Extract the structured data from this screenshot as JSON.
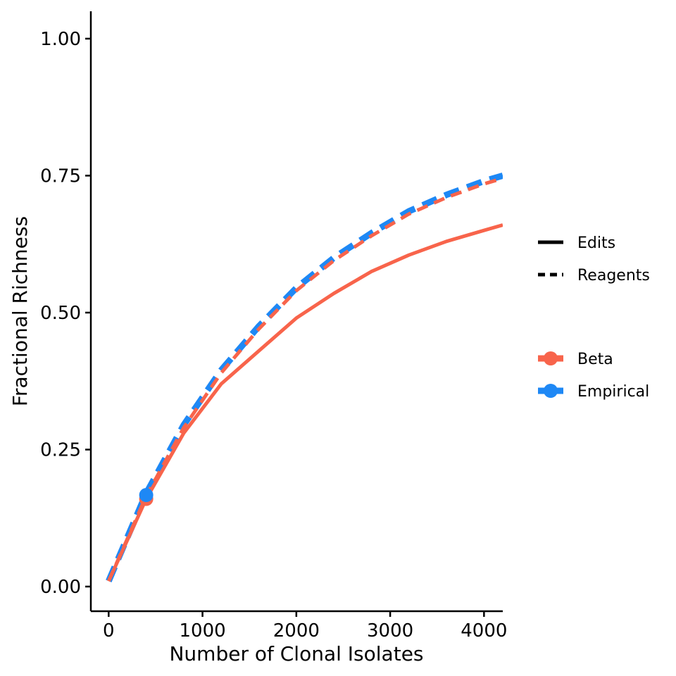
{
  "chart_data": {
    "type": "line",
    "xlabel": "Number of Clonal Isolates",
    "ylabel": "Fractional Richness",
    "xlim": [
      -190,
      4200
    ],
    "ylim": [
      -0.045,
      1.05
    ],
    "x_ticks": [
      0,
      1000,
      2000,
      3000,
      4000
    ],
    "x_tick_labels": [
      "0",
      "1000",
      "2000",
      "3000",
      "4000"
    ],
    "y_ticks": [
      0,
      0.25,
      0.5,
      0.75,
      1.0
    ],
    "y_tick_labels": [
      "0.00",
      "0.25",
      "0.50",
      "0.75",
      "1.00"
    ],
    "grid": false,
    "legend_position": "right",
    "linetype_legend": [
      {
        "label": "Edits",
        "style": "solid"
      },
      {
        "label": "Reagents",
        "style": "dashed"
      }
    ],
    "color_legend": [
      {
        "label": "Beta",
        "color": "#F8644B"
      },
      {
        "label": "Empirical",
        "color": "#1E88F5"
      }
    ],
    "series": [
      {
        "method": "Empirical",
        "type": "Reagents",
        "style": "dashed",
        "color": "#1E88F5",
        "x": [
          0,
          400,
          800,
          1200,
          1600,
          2000,
          2400,
          2800,
          3200,
          3600,
          4000,
          4200
        ],
        "y": [
          0.01,
          0.17,
          0.295,
          0.395,
          0.475,
          0.545,
          0.6,
          0.645,
          0.685,
          0.715,
          0.74,
          0.75
        ]
      },
      {
        "method": "Beta",
        "type": "Reagents",
        "style": "dashed",
        "color": "#F8644B",
        "x": [
          0,
          400,
          800,
          1200,
          1600,
          2000,
          2400,
          2800,
          3200,
          3600,
          4000,
          4200
        ],
        "y": [
          0.01,
          0.165,
          0.29,
          0.39,
          0.47,
          0.54,
          0.595,
          0.64,
          0.68,
          0.71,
          0.735,
          0.745
        ]
      },
      {
        "method": "Beta",
        "type": "Edits",
        "style": "solid",
        "color": "#F8644B",
        "x": [
          0,
          400,
          800,
          1200,
          1600,
          2000,
          2400,
          2800,
          3200,
          3600,
          4000,
          4200
        ],
        "y": [
          0.01,
          0.16,
          0.28,
          0.37,
          0.43,
          0.49,
          0.535,
          0.575,
          0.605,
          0.63,
          0.65,
          0.66
        ]
      }
    ],
    "points": [
      {
        "method": "Beta",
        "color": "#F8644B",
        "x": 400,
        "y": 0.16
      },
      {
        "method": "Empirical",
        "color": "#1E88F5",
        "x": 400,
        "y": 0.167
      }
    ]
  }
}
